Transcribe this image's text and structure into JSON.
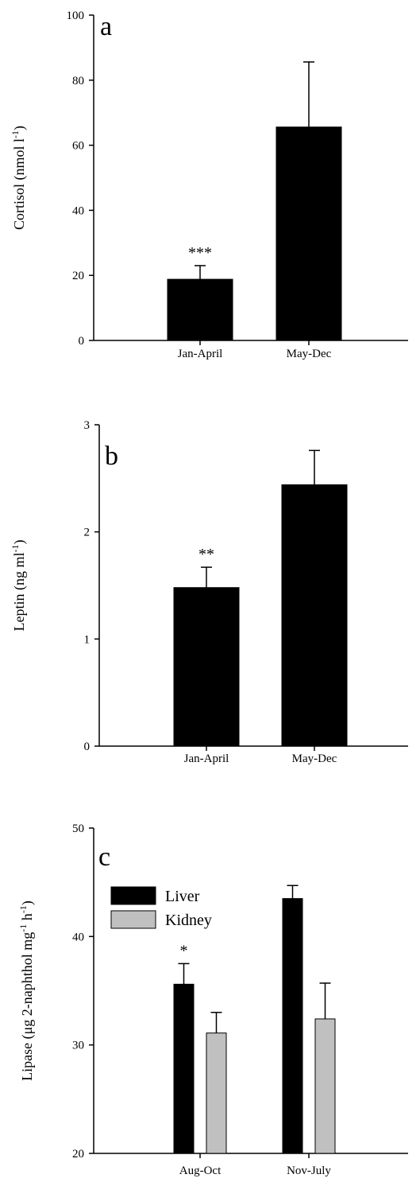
{
  "colors": {
    "liver": "#000000",
    "kidney": "#c0c0c0",
    "bar_single": "#000000",
    "axis": "#000000"
  },
  "chart_data": [
    {
      "type": "bar",
      "panel_label": "a",
      "categories": [
        "Jan-April",
        "May-Dec"
      ],
      "series": [
        {
          "values": [
            18.8,
            65.6
          ],
          "errors": [
            4.2,
            20.0
          ],
          "color": "#000000"
        }
      ],
      "annotations": [
        {
          "category": "Jan-April",
          "text": "***"
        }
      ],
      "xlabel": "",
      "ylabel_main": "Cortisol (nmol l",
      "ylabel_sup": "-1",
      "ylabel_close": ")",
      "ylim": [
        0,
        100
      ],
      "yticks": [
        0,
        20,
        40,
        60,
        80,
        100
      ],
      "ytick_labels": [
        "0",
        "20",
        "40",
        "60",
        "80",
        "100"
      ],
      "legend": null
    },
    {
      "type": "bar",
      "panel_label": "b",
      "categories": [
        "Jan-April",
        "May-Dec"
      ],
      "series": [
        {
          "values": [
            1.48,
            2.44
          ],
          "errors": [
            0.19,
            0.32
          ],
          "color": "#000000"
        }
      ],
      "annotations": [
        {
          "category": "Jan-April",
          "text": "**"
        }
      ],
      "xlabel": "",
      "ylabel_main": "Leptin (ng ml",
      "ylabel_sup": "-1",
      "ylabel_close": ")",
      "ylim": [
        0,
        3
      ],
      "yticks": [
        0,
        1,
        2,
        3
      ],
      "ytick_labels": [
        "0",
        "1",
        "2",
        "3"
      ],
      "legend": null
    },
    {
      "type": "bar",
      "panel_label": "c",
      "categories": [
        "Aug-Oct",
        "Nov-July"
      ],
      "series": [
        {
          "name": "Liver",
          "values": [
            35.6,
            43.5
          ],
          "errors": [
            1.9,
            1.2
          ],
          "color": "#000000"
        },
        {
          "name": "Kidney",
          "values": [
            31.1,
            32.4
          ],
          "errors": [
            1.9,
            3.3
          ],
          "color": "#c0c0c0"
        }
      ],
      "annotations": [
        {
          "category": "Aug-Oct",
          "series": "Liver",
          "text": "*"
        }
      ],
      "xlabel": "",
      "ylabel_main": "Lipase (μg 2-naphthol mg",
      "ylabel_sup": "-1",
      "ylabel_mid": " h",
      "ylabel_sup2": "-1",
      "ylabel_close": ")",
      "ylim": [
        20,
        50
      ],
      "yticks": [
        20,
        30,
        40,
        50
      ],
      "ytick_labels": [
        "20",
        "30",
        "40",
        "50"
      ],
      "legend": "top-left"
    }
  ]
}
